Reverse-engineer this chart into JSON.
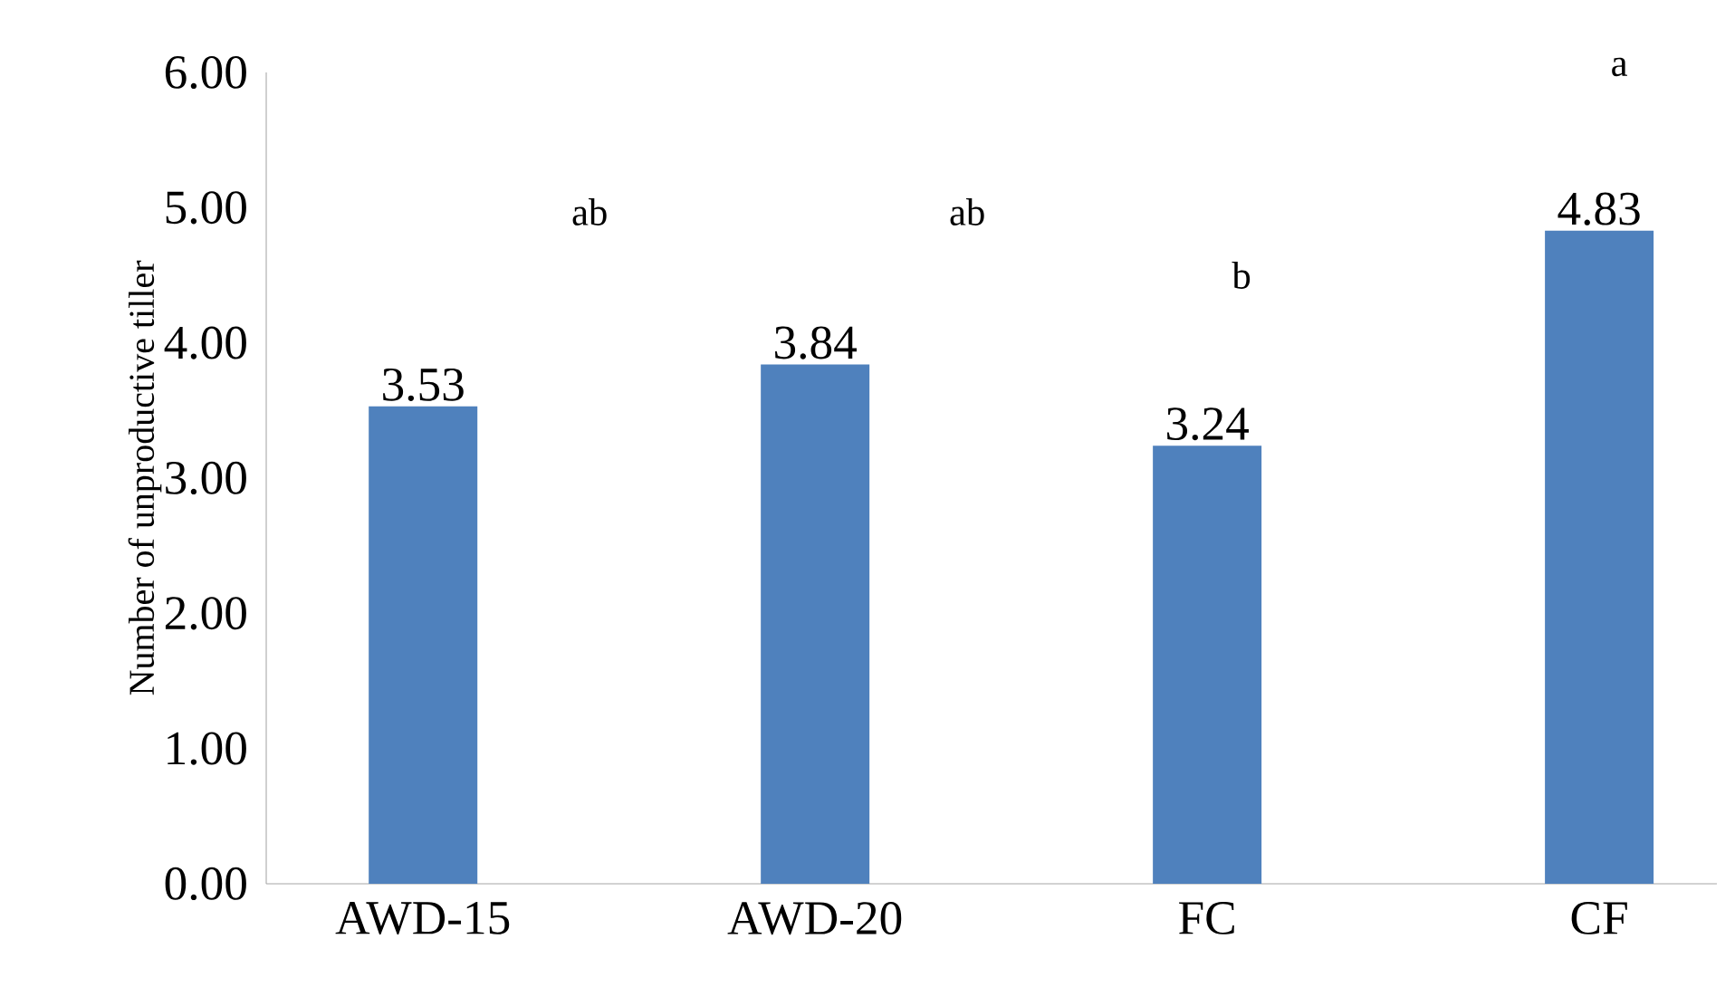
{
  "chart_data": {
    "type": "bar",
    "ylabel": "Number of unproductive tiller",
    "categories": [
      "AWD-15",
      "AWD-20",
      "FC",
      "CF"
    ],
    "values": [
      3.53,
      3.84,
      3.24,
      4.83
    ],
    "color": "#4f81bd",
    "ylim": [
      0,
      6
    ],
    "yticks": [
      {
        "value": 0,
        "label": "0.00"
      },
      {
        "value": 1,
        "label": "1.00"
      },
      {
        "value": 2,
        "label": "2.00"
      },
      {
        "value": 3,
        "label": "3.00"
      },
      {
        "value": 4,
        "label": "4.00"
      },
      {
        "value": 5,
        "label": "5.00"
      },
      {
        "value": 6,
        "label": "6.00"
      }
    ],
    "data_labels": true,
    "grid": false,
    "annotations": [
      "ab",
      "ab",
      "b",
      "a"
    ]
  }
}
